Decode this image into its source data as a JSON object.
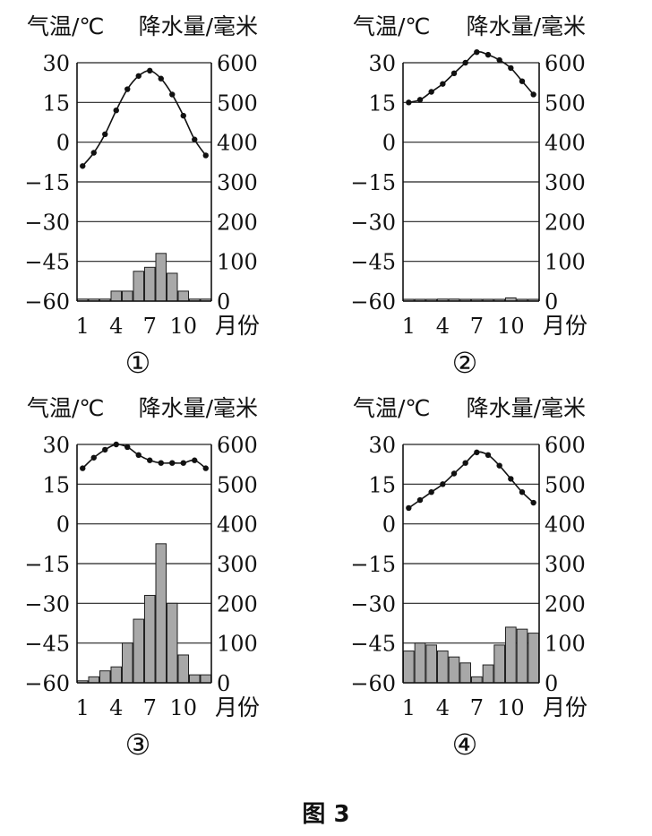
{
  "figure_caption": "图 3",
  "colors": {
    "line": "#111111",
    "bar_fill": "#a8a8a8",
    "bar_stroke": "#222222"
  },
  "chart_data": [
    {
      "type": "bar+line",
      "panel_label": "①",
      "left_axis_label": "气温/℃",
      "right_axis_label": "降水量/毫米",
      "x_axis_label": "月份",
      "x_ticks": [
        "1",
        "4",
        "7",
        "10"
      ],
      "months": [
        1,
        2,
        3,
        4,
        5,
        6,
        7,
        8,
        9,
        10,
        11,
        12
      ],
      "left_ticks": [
        "30",
        "15",
        "0",
        "-15",
        "-30",
        "-45",
        "-60"
      ],
      "right_ticks": [
        "600",
        "500",
        "400",
        "300",
        "200",
        "100",
        "0"
      ],
      "temp_range": [
        -60,
        30
      ],
      "precip_range": [
        0,
        600
      ],
      "grid": true,
      "temperature": [
        -9,
        -4,
        3,
        12,
        20,
        25,
        27,
        24,
        18,
        10,
        1,
        -5
      ],
      "precipitation": [
        5,
        5,
        5,
        25,
        25,
        75,
        85,
        120,
        70,
        25,
        5,
        5
      ]
    },
    {
      "type": "bar+line",
      "panel_label": "②",
      "left_axis_label": "气温/℃",
      "right_axis_label": "降水量/毫米",
      "x_axis_label": "月份",
      "x_ticks": [
        "1",
        "4",
        "7",
        "10"
      ],
      "months": [
        1,
        2,
        3,
        4,
        5,
        6,
        7,
        8,
        9,
        10,
        11,
        12
      ],
      "left_ticks": [
        "30",
        "15",
        "0",
        "-15",
        "-30",
        "-45",
        "-60"
      ],
      "right_ticks": [
        "600",
        "500",
        "400",
        "300",
        "200",
        "100",
        "0"
      ],
      "temp_range": [
        -60,
        30
      ],
      "precip_range": [
        0,
        600
      ],
      "grid": true,
      "temperature": [
        15,
        16,
        19,
        22,
        26,
        30,
        34,
        33,
        31,
        28,
        23,
        18
      ],
      "precipitation": [
        0,
        0,
        0,
        5,
        5,
        0,
        0,
        0,
        0,
        8,
        0,
        0
      ]
    },
    {
      "type": "bar+line",
      "panel_label": "③",
      "left_axis_label": "气温/℃",
      "right_axis_label": "降水量/毫米",
      "x_axis_label": "月份",
      "x_ticks": [
        "1",
        "4",
        "7",
        "10"
      ],
      "months": [
        1,
        2,
        3,
        4,
        5,
        6,
        7,
        8,
        9,
        10,
        11,
        12
      ],
      "left_ticks": [
        "30",
        "15",
        "0",
        "-15",
        "-30",
        "-45",
        "-60"
      ],
      "right_ticks": [
        "600",
        "500",
        "400",
        "300",
        "200",
        "100",
        "0"
      ],
      "temp_range": [
        -60,
        30
      ],
      "precip_range": [
        0,
        600
      ],
      "grid": true,
      "temperature": [
        21,
        25,
        28,
        30,
        29,
        26,
        24,
        23,
        23,
        23,
        24,
        21
      ],
      "precipitation": [
        5,
        15,
        30,
        40,
        100,
        160,
        220,
        350,
        200,
        70,
        20,
        20
      ]
    },
    {
      "type": "bar+line",
      "panel_label": "④",
      "left_axis_label": "气温/℃",
      "right_axis_label": "降水量/毫米",
      "x_axis_label": "月份",
      "x_ticks": [
        "1",
        "4",
        "7",
        "10"
      ],
      "months": [
        1,
        2,
        3,
        4,
        5,
        6,
        7,
        8,
        9,
        10,
        11,
        12
      ],
      "left_ticks": [
        "30",
        "15",
        "0",
        "-15",
        "-30",
        "-45",
        "-60"
      ],
      "right_ticks": [
        "600",
        "500",
        "400",
        "300",
        "200",
        "100",
        "0"
      ],
      "temp_range": [
        -60,
        30
      ],
      "precip_range": [
        0,
        600
      ],
      "grid": true,
      "temperature": [
        6,
        9,
        12,
        15,
        19,
        23,
        27,
        26,
        22,
        17,
        12,
        8
      ],
      "precipitation": [
        80,
        100,
        95,
        80,
        65,
        50,
        15,
        45,
        95,
        140,
        135,
        125
      ]
    }
  ]
}
